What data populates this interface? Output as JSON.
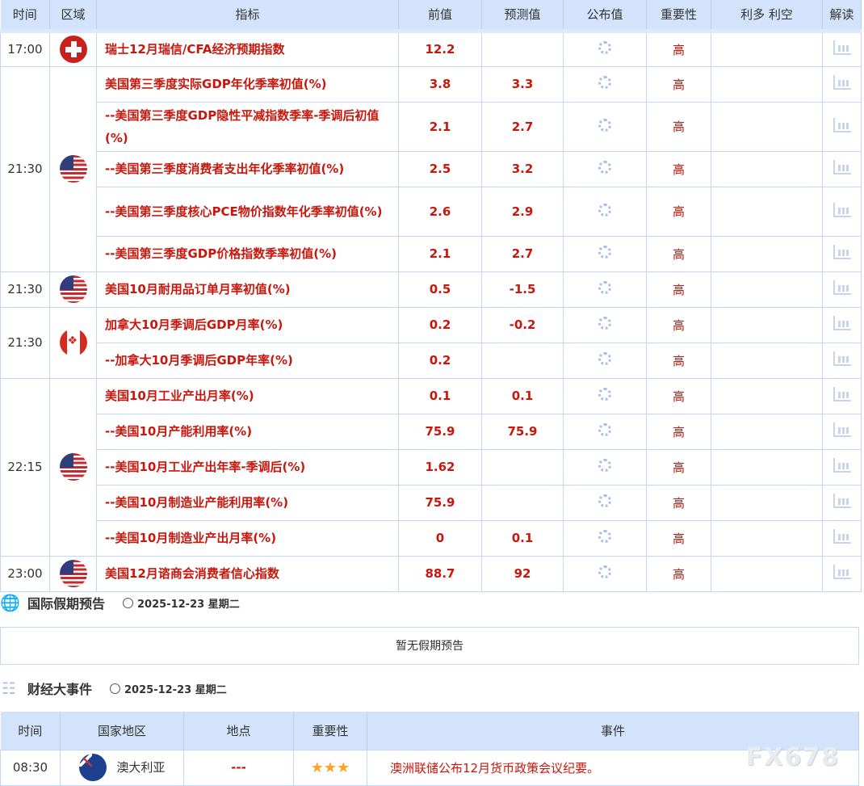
{
  "calendar": {
    "headers": [
      "时间",
      "区域",
      "指标",
      "前值",
      "预测值",
      "公布值",
      "重要性",
      "利多 利空",
      "解读"
    ],
    "groups": [
      {
        "time": "17:00",
        "flag": "ch",
        "rows": [
          {
            "indicator": "瑞士12月瑞信/CFA经济预期指数",
            "previous": "12.2",
            "forecast": "",
            "actual": "",
            "importance": "高"
          }
        ]
      },
      {
        "time": "21:30",
        "flag": "us",
        "rows": [
          {
            "indicator": "美国第三季度实际GDP年化季率初值(%)",
            "previous": "3.8",
            "forecast": "3.3",
            "actual": "",
            "importance": "高"
          },
          {
            "indicator": "--美国第三季度GDP隐性平减指数季率-季调后初值(%)",
            "previous": "2.1",
            "forecast": "2.7",
            "actual": "",
            "importance": "高"
          },
          {
            "indicator": "--美国第三季度消费者支出年化季率初值(%)",
            "previous": "2.5",
            "forecast": "3.2",
            "actual": "",
            "importance": "高"
          },
          {
            "indicator": "--美国第三季度核心PCE物价指数年化季率初值(%)",
            "previous": "2.6",
            "forecast": "2.9",
            "actual": "",
            "importance": "高"
          },
          {
            "indicator": "--美国第三季度GDP价格指数季率初值(%)",
            "previous": "2.1",
            "forecast": "2.7",
            "actual": "",
            "importance": "高"
          }
        ]
      },
      {
        "time": "21:30",
        "flag": "us",
        "rows": [
          {
            "indicator": "美国10月耐用品订单月率初值(%)",
            "previous": "0.5",
            "forecast": "-1.5",
            "actual": "",
            "importance": "高"
          }
        ]
      },
      {
        "time": "21:30",
        "flag": "ca",
        "rows": [
          {
            "indicator": "加拿大10月季调后GDP月率(%)",
            "previous": "0.2",
            "forecast": "-0.2",
            "actual": "",
            "importance": "高"
          },
          {
            "indicator": "--加拿大10月季调后GDP年率(%)",
            "previous": "0.2",
            "forecast": "",
            "actual": "",
            "importance": "高"
          }
        ]
      },
      {
        "time": "22:15",
        "flag": "us",
        "rows": [
          {
            "indicator": "美国10月工业产出月率(%)",
            "previous": "0.1",
            "forecast": "0.1",
            "actual": "",
            "importance": "高"
          },
          {
            "indicator": "--美国10月产能利用率(%)",
            "previous": "75.9",
            "forecast": "75.9",
            "actual": "",
            "importance": "高"
          },
          {
            "indicator": "--美国10月工业产出年率-季调后(%)",
            "previous": "1.62",
            "forecast": "",
            "actual": "",
            "importance": "高"
          },
          {
            "indicator": "--美国10月制造业产能利用率(%)",
            "previous": "75.9",
            "forecast": "",
            "actual": "",
            "importance": "高"
          },
          {
            "indicator": "--美国10月制造业产出月率(%)",
            "previous": "0",
            "forecast": "0.1",
            "actual": "",
            "importance": "高"
          }
        ]
      },
      {
        "time": "23:00",
        "flag": "us",
        "rows": [
          {
            "indicator": "美国12月谘商会消费者信心指数",
            "previous": "88.7",
            "forecast": "92",
            "actual": "",
            "importance": "高"
          }
        ]
      }
    ]
  },
  "holidays": {
    "title": "国际假期预告",
    "date": "2025-12-23 星期二",
    "empty": "暂无假期预告"
  },
  "events": {
    "title": "财经大事件",
    "date": "2025-12-23 星期二",
    "headers": [
      "时间",
      "国家地区",
      "地点",
      "重要性",
      "事件"
    ],
    "rows": [
      {
        "time": "08:30",
        "flag": "au",
        "country": "澳大利亚",
        "location": "---",
        "stars": 3,
        "event": "澳洲联储公布12月货币政策会议纪要。"
      }
    ]
  },
  "watermark": "FX678",
  "colors": {
    "accent": "#c8170d",
    "header_bg": "#d3e3fb",
    "border": "#c3d6f3"
  }
}
